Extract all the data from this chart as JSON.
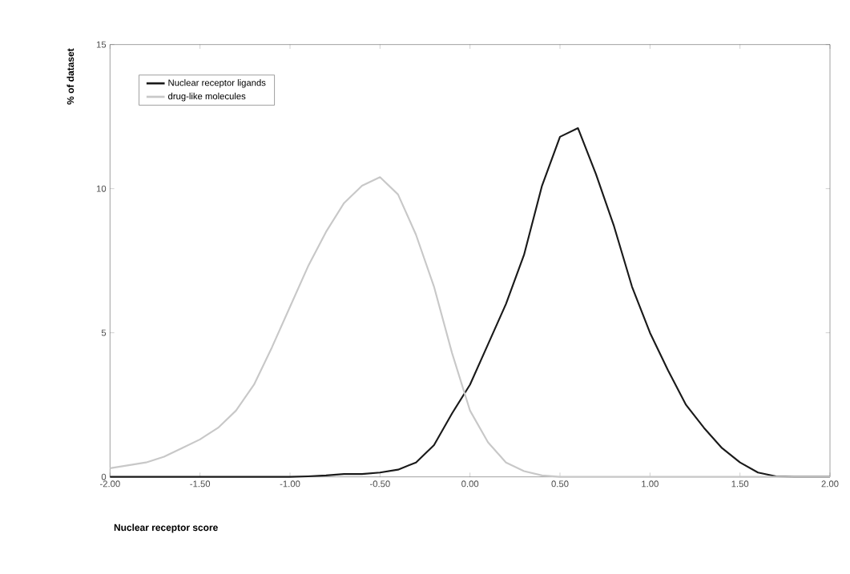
{
  "chart_data": {
    "type": "line",
    "xlabel": "Nuclear receptor score",
    "ylabel": "% of dataset",
    "x": [
      -2.0,
      -1.9,
      -1.8,
      -1.7,
      -1.6,
      -1.5,
      -1.4,
      -1.3,
      -1.2,
      -1.1,
      -1.0,
      -0.9,
      -0.8,
      -0.7,
      -0.6,
      -0.5,
      -0.4,
      -0.3,
      -0.2,
      -0.1,
      0.0,
      0.1,
      0.2,
      0.3,
      0.4,
      0.5,
      0.6,
      0.7,
      0.8,
      0.9,
      1.0,
      1.1,
      1.2,
      1.3,
      1.4,
      1.5,
      1.6,
      1.7,
      1.8,
      1.9,
      2.0
    ],
    "series": [
      {
        "name": "Nuclear receptor ligands",
        "color": "#1a1a1a",
        "values": [
          0,
          0,
          0,
          0,
          0,
          0,
          0,
          0,
          0,
          0,
          0,
          0.02,
          0.05,
          0.1,
          0.1,
          0.15,
          0.25,
          0.5,
          1.1,
          2.2,
          3.2,
          4.6,
          6.0,
          7.7,
          10.1,
          11.8,
          12.1,
          10.5,
          8.7,
          6.6,
          5.0,
          3.7,
          2.5,
          1.7,
          1.0,
          0.5,
          0.15,
          0.02,
          0,
          0,
          0
        ]
      },
      {
        "name": "drug-like molecules",
        "color": "#c8c8c8",
        "values": [
          0.3,
          0.4,
          0.5,
          0.7,
          1.0,
          1.3,
          1.7,
          2.3,
          3.2,
          4.5,
          5.9,
          7.3,
          8.5,
          9.5,
          10.1,
          10.4,
          9.8,
          8.4,
          6.6,
          4.3,
          2.3,
          1.2,
          0.5,
          0.2,
          0.05,
          0,
          0,
          0,
          0,
          0,
          0,
          0,
          0,
          0,
          0,
          0,
          0,
          0,
          0,
          0,
          0
        ]
      }
    ],
    "xlim": [
      -2,
      2
    ],
    "xticks": [
      {
        "value": -2,
        "label": "-2.00"
      },
      {
        "value": -1.5,
        "label": "-1.50"
      },
      {
        "value": -1,
        "label": "-1.00"
      },
      {
        "value": -0.5,
        "label": "-0.50"
      },
      {
        "value": 0,
        "label": "0.00"
      },
      {
        "value": 0.5,
        "label": "0.50"
      },
      {
        "value": 1,
        "label": "1.00"
      },
      {
        "value": 1.5,
        "label": "1.50"
      },
      {
        "value": 2,
        "label": "2.00"
      }
    ],
    "ylim": [
      0,
      15
    ],
    "yticks": [
      0,
      5,
      10,
      15
    ],
    "legend": "top left",
    "grid": false,
    "marker": "none",
    "line_style": "solid"
  }
}
